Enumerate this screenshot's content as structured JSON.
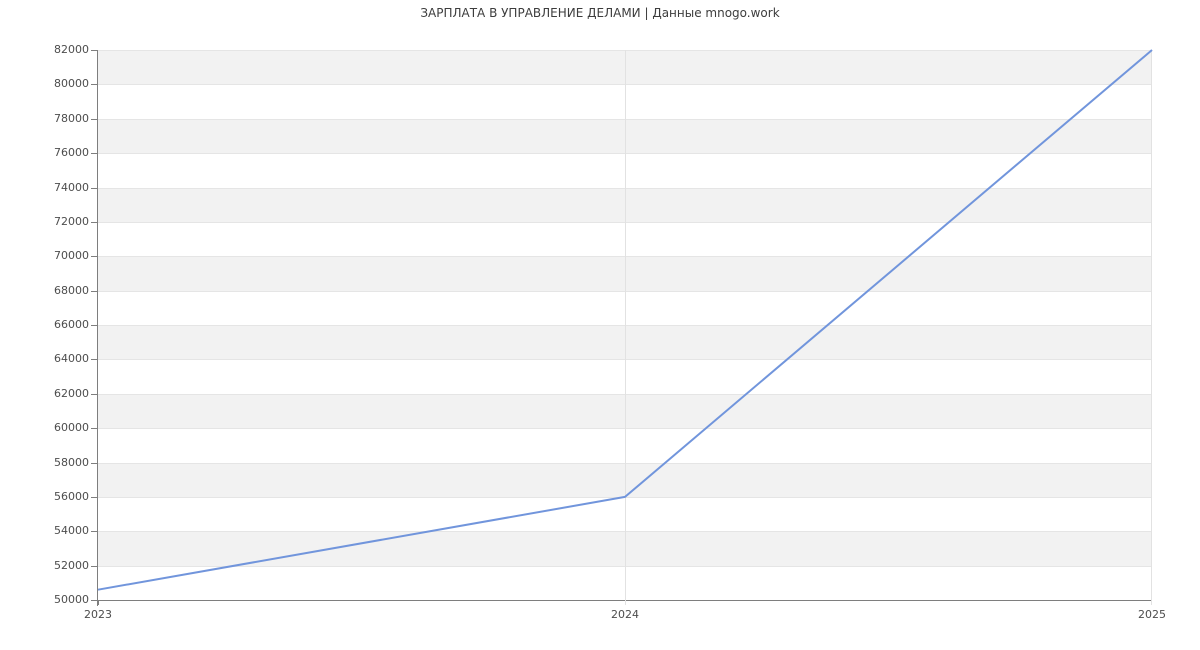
{
  "chart_data": {
    "type": "line",
    "title": "ЗАРПЛАТА В УПРАВЛЕНИЕ ДЕЛАМИ | Данные mnogo.work",
    "x": [
      2023,
      2024,
      2025
    ],
    "xtick_labels": [
      "2023",
      "2024",
      "2025"
    ],
    "series": [
      {
        "name": "salary",
        "values": [
          50600,
          56000,
          82000
        ]
      }
    ],
    "xlabel": "",
    "ylabel": "",
    "ylim": [
      50000,
      82000
    ],
    "ytick_step": 2000,
    "xlim": [
      2023,
      2025
    ],
    "grid": true,
    "striped_bands": true,
    "legend_position": "none",
    "colors": {
      "line": "#7195dc",
      "band": "#f2f2f2",
      "hgrid": "#e5e5e5",
      "vgrid": "#e2e2e2",
      "axis": "#7e7e7e",
      "tick_text": "#4d4d4d",
      "title_text": "#3d3d3d",
      "background": "#ffffff"
    }
  }
}
